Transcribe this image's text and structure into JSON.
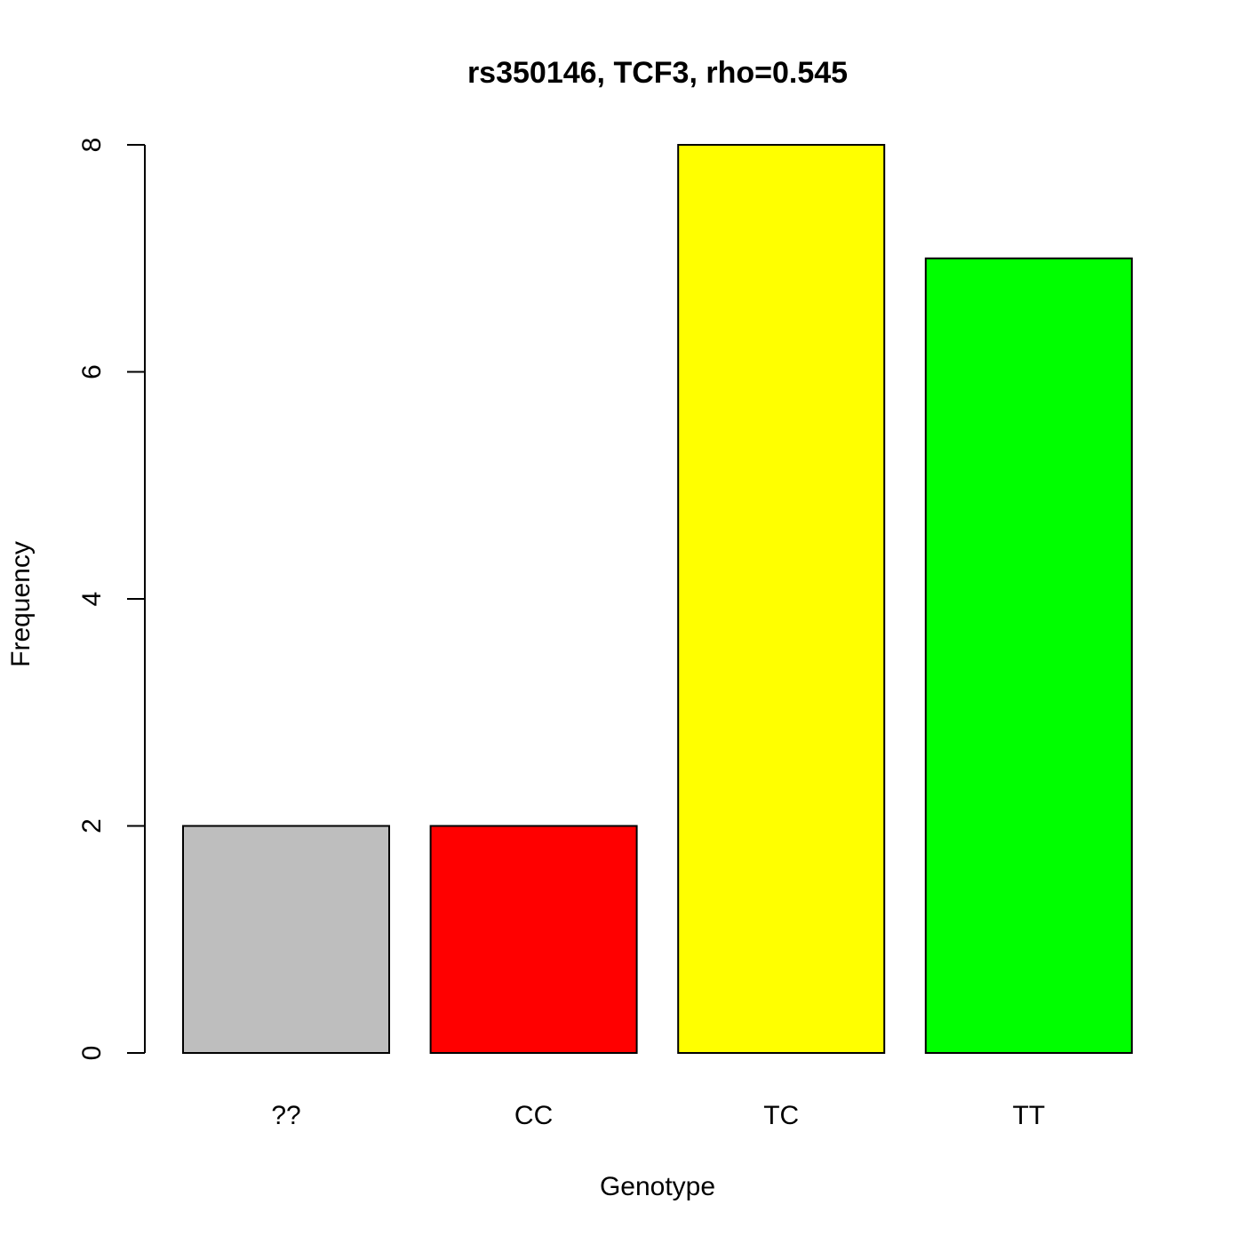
{
  "chart_data": {
    "type": "bar",
    "title": "rs350146, TCF3, rho=0.545",
    "x_label": "Genotype",
    "y_label": "Frequency",
    "categories": [
      "??",
      "CC",
      "TC",
      "TT"
    ],
    "values": [
      2,
      2,
      8,
      7
    ],
    "colors": [
      "#bebebe",
      "#ff0000",
      "#ffff00",
      "#00ff00"
    ],
    "ylim": [
      0,
      8
    ],
    "yticks": [
      0,
      2,
      4,
      6,
      8
    ]
  }
}
